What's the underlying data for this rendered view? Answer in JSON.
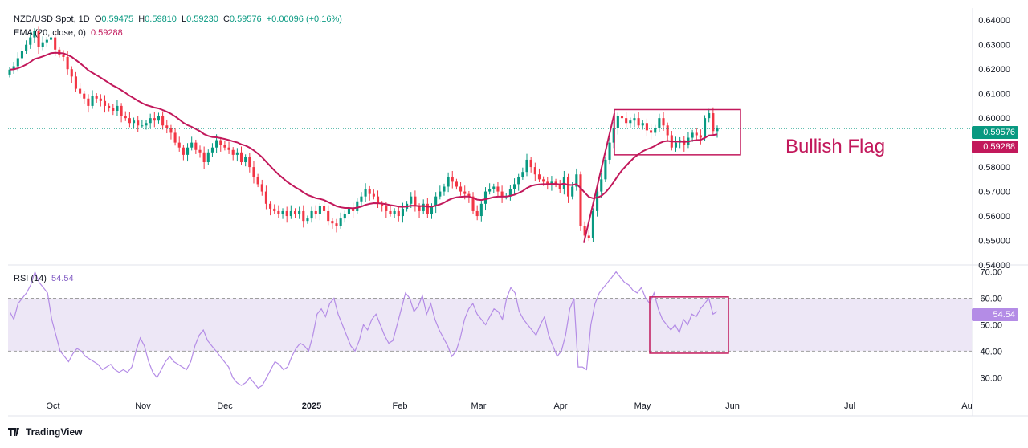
{
  "header": {
    "symbol": "NZD/USD Spot, 1D",
    "open_label": "O",
    "open": "0.59475",
    "high_label": "H",
    "high": "0.59810",
    "low_label": "L",
    "low": "0.59230",
    "close_label": "C",
    "close": "0.59576",
    "change": "+0.00096 (+0.16%)",
    "ema_label": "EMA (20, close, 0)",
    "ema_value": "0.59288",
    "rsi_label": "RSI (14)",
    "rsi_value": "54.54"
  },
  "annotation": "Bullish Flag",
  "footer": "TradingView",
  "colors": {
    "up": "#089981",
    "down": "#f23645",
    "ema": "#c2185b",
    "rsi": "#b48ce6",
    "rsi_band": "#ede7f6",
    "box": "#c2185b"
  },
  "chart_data": [
    {
      "type": "candlestick",
      "title": "NZD/USD Spot, 1D",
      "ylim": [
        0.54,
        0.645
      ],
      "y_ticks": [
        "0.64000",
        "0.63000",
        "0.62000",
        "0.61000",
        "0.60000",
        "0.58000",
        "0.57000",
        "0.56000",
        "0.55000",
        "0.54000"
      ],
      "x_ticks": [
        "Oct",
        "Nov",
        "Dec",
        "2025",
        "Feb",
        "Mar",
        "Apr",
        "May",
        "Jun",
        "Jul",
        "Au"
      ],
      "last_price": "0.59576",
      "ema_last": "0.59288",
      "close_series": [
        0.6198,
        0.6212,
        0.6245,
        0.6275,
        0.63,
        0.633,
        0.6355,
        0.629,
        0.631,
        0.632,
        0.633,
        0.628,
        0.626,
        0.625,
        0.62,
        0.617,
        0.612,
        0.61,
        0.608,
        0.605,
        0.609,
        0.608,
        0.607,
        0.605,
        0.604,
        0.603,
        0.605,
        0.601,
        0.6,
        0.598,
        0.599,
        0.597,
        0.597,
        0.598,
        0.6,
        0.599,
        0.601,
        0.597,
        0.596,
        0.594,
        0.59,
        0.588,
        0.585,
        0.588,
        0.59,
        0.587,
        0.586,
        0.582,
        0.586,
        0.588,
        0.591,
        0.589,
        0.588,
        0.587,
        0.585,
        0.586,
        0.582,
        0.584,
        0.58,
        0.576,
        0.573,
        0.57,
        0.565,
        0.563,
        0.562,
        0.561,
        0.562,
        0.56,
        0.562,
        0.561,
        0.562,
        0.558,
        0.559,
        0.562,
        0.561,
        0.564,
        0.562,
        0.558,
        0.557,
        0.556,
        0.559,
        0.561,
        0.563,
        0.562,
        0.566,
        0.568,
        0.571,
        0.569,
        0.568,
        0.565,
        0.564,
        0.562,
        0.561,
        0.562,
        0.56,
        0.563,
        0.565,
        0.568,
        0.564,
        0.562,
        0.565,
        0.561,
        0.564,
        0.568,
        0.57,
        0.572,
        0.576,
        0.574,
        0.572,
        0.57,
        0.569,
        0.568,
        0.562,
        0.56,
        0.565,
        0.57,
        0.571,
        0.572,
        0.57,
        0.568,
        0.568,
        0.571,
        0.573,
        0.576,
        0.578,
        0.583,
        0.58,
        0.577,
        0.575,
        0.574,
        0.573,
        0.574,
        0.573,
        0.571,
        0.576,
        0.568,
        0.572,
        0.577,
        0.556,
        0.552,
        0.551,
        0.562,
        0.57,
        0.575,
        0.583,
        0.59,
        0.596,
        0.601,
        0.6,
        0.598,
        0.599,
        0.6,
        0.597,
        0.598,
        0.595,
        0.594,
        0.596,
        0.6,
        0.597,
        0.593,
        0.588,
        0.59,
        0.591,
        0.589,
        0.592,
        0.594,
        0.593,
        0.592,
        0.6,
        0.602,
        0.5947,
        0.5958
      ]
    },
    {
      "type": "line",
      "title": "RSI (14)",
      "ylim": [
        24,
        72
      ],
      "y_ticks": [
        "70.00",
        "60.00",
        "50.00",
        "40.00",
        "30.00"
      ],
      "band": [
        40,
        60
      ],
      "last_value": "54.54",
      "values": [
        55,
        52,
        58,
        60,
        62,
        65,
        70,
        66,
        64,
        62,
        52,
        46,
        40,
        38,
        36,
        39,
        41,
        40,
        38,
        37,
        36,
        35,
        33,
        34,
        35,
        33,
        32,
        33,
        32,
        34,
        40,
        45,
        42,
        36,
        32,
        30,
        33,
        36,
        38,
        36,
        35,
        34,
        33,
        36,
        42,
        46,
        48,
        44,
        42,
        40,
        38,
        36,
        34,
        30,
        28,
        27,
        28,
        30,
        28,
        26,
        27,
        30,
        33,
        36,
        35,
        33,
        34,
        38,
        41,
        43,
        42,
        40,
        46,
        54,
        56,
        53,
        58,
        60,
        54,
        50,
        46,
        42,
        40,
        44,
        50,
        48,
        52,
        54,
        50,
        46,
        43,
        44,
        50,
        56,
        62,
        60,
        55,
        57,
        61,
        54,
        58,
        52,
        48,
        45,
        42,
        38,
        40,
        45,
        52,
        56,
        58,
        54,
        52,
        50,
        53,
        56,
        55,
        52,
        60,
        64,
        62,
        55,
        52,
        50,
        48,
        46,
        50,
        53,
        46,
        42,
        38,
        40,
        46,
        56,
        60,
        34,
        34,
        33,
        50,
        58,
        62,
        64,
        66,
        68,
        70,
        68,
        66,
        65,
        63,
        62,
        64,
        60,
        58,
        62,
        56,
        52,
        50,
        48,
        50,
        47,
        52,
        50,
        54,
        53,
        56,
        58,
        60,
        54,
        55
      ]
    }
  ]
}
